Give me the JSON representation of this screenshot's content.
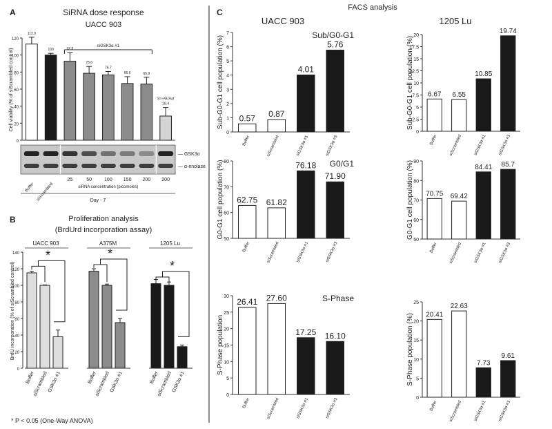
{
  "panel_labels": {
    "a": "A",
    "b": "B",
    "c": "C"
  },
  "colors": {
    "white": "#ffffff",
    "black": "#1a1a1a",
    "light_gray": "#dedede",
    "mid_gray": "#8c8c8c",
    "pale": "#d4d4d4"
  },
  "chart_data": [
    {
      "id": "a",
      "type": "bar",
      "title": "SiRNA dose response",
      "subtitle": "UACC 903",
      "ylabel": "Cell viability (% of siScrambled control)",
      "xlabel": "siRNA concentration (picomoles)",
      "footer": "Day - 7",
      "bracket_label": "siGSK3α #1",
      "ylim": [
        0,
        120
      ],
      "yticks": [
        0,
        20,
        40,
        60,
        80,
        100,
        120
      ],
      "categories": [
        "Buffer",
        "siScrambled",
        "25",
        "50",
        "100",
        "150",
        "200",
        "200"
      ],
      "values": [
        112.9,
        100,
        92.8,
        78.6,
        76.7,
        66.6,
        65.9,
        28.4
      ],
      "errors": [
        8,
        2,
        10,
        8,
        4,
        8,
        8,
        10
      ],
      "value_labels": [
        "112.9",
        "100",
        "92.8",
        "78.6",
        "76.7",
        "66.6",
        "65.9",
        "28.4"
      ],
      "special_label": "S²⁵⁶ᴬB-Raf",
      "fills": [
        "white",
        "black",
        "mid_gray",
        "mid_gray",
        "mid_gray",
        "mid_gray",
        "mid_gray",
        "pale"
      ],
      "blot_labels": [
        "GSK3α",
        "α-enolase"
      ]
    },
    {
      "id": "b",
      "type": "bar",
      "title": "Proliferation analysis",
      "subtitle": "(BrdUrd incorporation assay)",
      "ylabel": "BrdU incorporation (% of siScrambled control)",
      "ylim": [
        0,
        140
      ],
      "yticks": [
        0,
        20,
        40,
        60,
        80,
        100,
        120,
        140
      ],
      "significance_marker": "*",
      "footnote": "* P < 0.05 (One-Way ANOVA)",
      "groups": [
        {
          "name": "UACC 903",
          "fill": "light_gray",
          "categories": [
            "Buffer",
            "siScrambled",
            "GSK3α #1"
          ],
          "values": [
            115,
            100,
            38
          ],
          "errors": [
            2,
            0.5,
            8
          ]
        },
        {
          "name": "A375M",
          "fill": "mid_gray",
          "categories": [
            "Buffer",
            "siScrambled",
            "GSK3α #1"
          ],
          "values": [
            117,
            100,
            55
          ],
          "errors": [
            3,
            1.5,
            5
          ]
        },
        {
          "name": "1205 Lu",
          "fill": "black",
          "categories": [
            "Buffer",
            "siScrambled",
            "GSK3α #1"
          ],
          "values": [
            102,
            100,
            26
          ],
          "errors": [
            5,
            4,
            2
          ]
        }
      ]
    },
    {
      "id": "c1",
      "type": "bar",
      "section_title": "FACS analysis",
      "title": "UACC 903",
      "inner_title": "Sub/G0-G1",
      "ylabel": "Sub-G0-G1 cell population (%)",
      "ylim": [
        0,
        7
      ],
      "yticks": [
        0,
        1,
        2,
        3,
        4,
        5,
        6,
        7
      ],
      "categories": [
        "Buffer",
        "siScrambled",
        "siGSK3α #1",
        "siGSK3α #3"
      ],
      "values": [
        0.57,
        0.87,
        4.01,
        5.76
      ],
      "value_labels": [
        "0.57",
        "0.87",
        "4.01",
        "5.76"
      ],
      "fills": [
        "white",
        "white",
        "black",
        "black"
      ]
    },
    {
      "id": "c2",
      "type": "bar",
      "title": "1205 Lu",
      "ylabel": "Sub-G0-G1 cell population (%)",
      "ylim": [
        0,
        20
      ],
      "yticks": [
        0,
        2.5,
        5,
        7.5,
        10,
        12.5,
        15,
        17.5,
        20
      ],
      "tick_labels": [
        "0",
        "2.5",
        "5",
        "7.5",
        "10",
        "12.5",
        "15",
        "17.5",
        "20"
      ],
      "categories": [
        "Buffer",
        "siScrambled",
        "siGSK3α #1",
        "siGSK3α #3"
      ],
      "values": [
        6.67,
        6.55,
        10.85,
        19.74
      ],
      "value_labels": [
        "6.67",
        "6.55",
        "10.85",
        "19.74"
      ],
      "fills": [
        "white",
        "white",
        "black",
        "black"
      ]
    },
    {
      "id": "c3",
      "type": "bar",
      "inner_title": "G0/G1",
      "ylabel": "G0-G1 cell population (%)",
      "ylim": [
        50,
        80
      ],
      "yticks": [
        50,
        60,
        70,
        80
      ],
      "categories": [
        "Buffer",
        "siScrambled",
        "siGSK3α #1",
        "siGSK3α #3"
      ],
      "values": [
        62.75,
        61.82,
        76.18,
        71.9
      ],
      "value_labels": [
        "62.75",
        "61.82",
        "76.18",
        "71.90"
      ],
      "fills": [
        "white",
        "white",
        "black",
        "black"
      ]
    },
    {
      "id": "c4",
      "type": "bar",
      "ylabel": "G0-G1 cell population (%)",
      "ylim": [
        50,
        90
      ],
      "yticks": [
        50,
        60,
        70,
        80,
        90
      ],
      "categories": [
        "Buffer",
        "siScrambled",
        "siGSK3α #1",
        "siGSK3α #3"
      ],
      "values": [
        70.75,
        69.42,
        84.41,
        85.7
      ],
      "value_labels": [
        "70.75",
        "69.42",
        "84.41",
        "85.7"
      ],
      "fills": [
        "white",
        "white",
        "black",
        "black"
      ]
    },
    {
      "id": "c5",
      "type": "bar",
      "inner_title": "S-Phase",
      "ylabel": "S-Phase population",
      "ylim": [
        0,
        30
      ],
      "yticks": [
        0,
        5,
        10,
        15,
        20,
        25,
        30
      ],
      "categories": [
        "Buffer",
        "siScrambled",
        "siGSK3α #1",
        "siGSK3α #3"
      ],
      "values": [
        26.41,
        27.6,
        17.25,
        16.1
      ],
      "value_labels": [
        "26.41",
        "27.60",
        "17.25",
        "16.10"
      ],
      "fills": [
        "white",
        "white",
        "black",
        "black"
      ]
    },
    {
      "id": "c6",
      "type": "bar",
      "ylabel": "S-Phase population (%)",
      "ylim": [
        0,
        25
      ],
      "yticks": [
        0,
        5,
        10,
        15,
        20,
        25
      ],
      "tick_labels": [
        "0",
        "5",
        "10",
        "15",
        "20",
        "25"
      ],
      "categories": [
        "Buffer",
        "siScrambled",
        "siGSK3α #1",
        "siGSK3α #3"
      ],
      "values": [
        20.41,
        22.63,
        7.73,
        9.61
      ],
      "value_labels": [
        "20.41",
        "22.63",
        "7.73",
        "9.61"
      ],
      "fills": [
        "white",
        "white",
        "black",
        "black"
      ]
    }
  ]
}
